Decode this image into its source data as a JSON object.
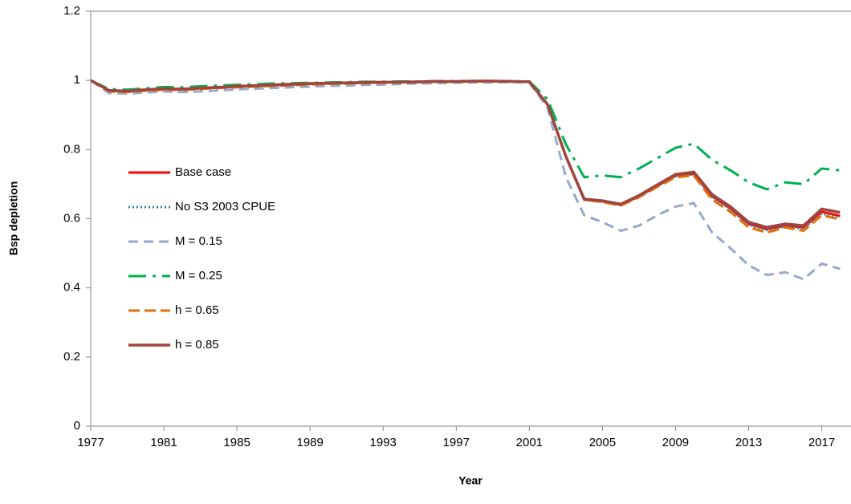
{
  "chart_data": {
    "type": "line",
    "x_label": "Year",
    "y_label": "Bsp depletion",
    "x": [
      1977,
      1978,
      1979,
      1980,
      1981,
      1982,
      1983,
      1984,
      1985,
      1986,
      1987,
      1988,
      1989,
      1990,
      1991,
      1992,
      1993,
      1994,
      1995,
      1996,
      1997,
      1998,
      1999,
      2000,
      2001,
      2002,
      2003,
      2004,
      2005,
      2006,
      2007,
      2008,
      2009,
      2010,
      2011,
      2012,
      2013,
      2014,
      2015,
      2016,
      2017,
      2018
    ],
    "xlim": [
      1977,
      2018.6
    ],
    "xticks": [
      1977,
      1981,
      1985,
      1989,
      1993,
      1997,
      2001,
      2005,
      2009,
      2013,
      2017
    ],
    "ylim": [
      0,
      1.2
    ],
    "yticks": [
      0,
      0.2,
      0.4,
      0.6,
      0.8,
      1,
      1.2
    ],
    "grid": false,
    "legend": "left",
    "series": [
      {
        "name": "Base case",
        "color": "#ff0000",
        "dash": "",
        "width": 3,
        "values": [
          1.0,
          0.97,
          0.968,
          0.972,
          0.975,
          0.974,
          0.977,
          0.979,
          0.982,
          0.984,
          0.986,
          0.988,
          0.99,
          0.991,
          0.992,
          0.993,
          0.994,
          0.995,
          0.995,
          0.996,
          0.997,
          0.997,
          0.997,
          0.997,
          0.996,
          0.93,
          0.78,
          0.655,
          0.65,
          0.64,
          0.665,
          0.695,
          0.725,
          0.73,
          0.665,
          0.63,
          0.585,
          0.57,
          0.58,
          0.575,
          0.62,
          0.608
        ]
      },
      {
        "name": "No S3 2003 CPUE",
        "color": "#31849b",
        "dash": "2,3",
        "width": 3,
        "values": [
          1.0,
          0.97,
          0.968,
          0.972,
          0.975,
          0.974,
          0.977,
          0.979,
          0.982,
          0.984,
          0.986,
          0.988,
          0.99,
          0.991,
          0.992,
          0.993,
          0.994,
          0.995,
          0.995,
          0.996,
          0.997,
          0.997,
          0.997,
          0.997,
          0.996,
          0.93,
          0.78,
          0.655,
          0.65,
          0.64,
          0.665,
          0.695,
          0.722,
          0.728,
          0.662,
          0.627,
          0.582,
          0.567,
          0.577,
          0.572,
          0.615,
          0.603
        ]
      },
      {
        "name": "M = 0.15",
        "color": "#95a9cc",
        "dash": "12,7",
        "width": 3,
        "values": [
          1.0,
          0.963,
          0.962,
          0.965,
          0.968,
          0.966,
          0.968,
          0.971,
          0.974,
          0.976,
          0.978,
          0.98,
          0.982,
          0.984,
          0.985,
          0.987,
          0.988,
          0.99,
          0.991,
          0.992,
          0.993,
          0.994,
          0.994,
          0.995,
          0.994,
          0.92,
          0.72,
          0.61,
          0.59,
          0.565,
          0.58,
          0.61,
          0.635,
          0.645,
          0.56,
          0.515,
          0.465,
          0.437,
          0.445,
          0.425,
          0.47,
          0.455
        ]
      },
      {
        "name": "M = 0.25",
        "color": "#00b050",
        "dash": "22,8,4,8",
        "width": 3,
        "values": [
          1.0,
          0.975,
          0.973,
          0.977,
          0.981,
          0.98,
          0.983,
          0.985,
          0.987,
          0.989,
          0.991,
          0.992,
          0.993,
          0.994,
          0.995,
          0.996,
          0.996,
          0.997,
          0.997,
          0.998,
          0.998,
          0.998,
          0.998,
          0.998,
          0.997,
          0.945,
          0.815,
          0.72,
          0.725,
          0.72,
          0.745,
          0.775,
          0.805,
          0.817,
          0.77,
          0.74,
          0.705,
          0.685,
          0.705,
          0.7,
          0.745,
          0.74
        ]
      },
      {
        "name": "h = 0.65",
        "color": "#e46c0a",
        "dash": "14,6",
        "width": 3,
        "values": [
          1.0,
          0.968,
          0.966,
          0.97,
          0.973,
          0.972,
          0.975,
          0.978,
          0.98,
          0.982,
          0.984,
          0.986,
          0.988,
          0.99,
          0.991,
          0.992,
          0.993,
          0.994,
          0.995,
          0.996,
          0.996,
          0.997,
          0.997,
          0.997,
          0.996,
          0.93,
          0.78,
          0.655,
          0.648,
          0.638,
          0.662,
          0.692,
          0.72,
          0.725,
          0.655,
          0.62,
          0.575,
          0.56,
          0.575,
          0.565,
          0.61,
          0.598
        ]
      },
      {
        "name": "h = 0.85",
        "color": "#a0453d",
        "dash": "",
        "width": 3.5,
        "values": [
          1.0,
          0.971,
          0.969,
          0.973,
          0.976,
          0.975,
          0.978,
          0.98,
          0.983,
          0.985,
          0.987,
          0.989,
          0.991,
          0.992,
          0.993,
          0.994,
          0.995,
          0.995,
          0.996,
          0.997,
          0.997,
          0.998,
          0.998,
          0.997,
          0.996,
          0.93,
          0.78,
          0.657,
          0.652,
          0.642,
          0.667,
          0.698,
          0.728,
          0.735,
          0.67,
          0.635,
          0.59,
          0.575,
          0.585,
          0.58,
          0.628,
          0.618
        ]
      }
    ]
  }
}
